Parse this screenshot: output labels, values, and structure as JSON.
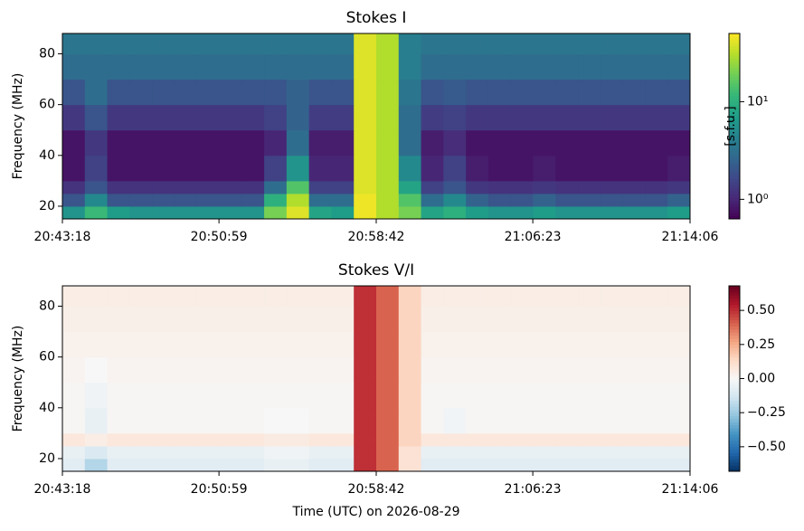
{
  "chart_data": [
    {
      "type": "heatmap",
      "title": "Stokes I",
      "ylabel": "Frequency (MHz)",
      "x": [
        0,
        66,
        132,
        198,
        264,
        330,
        396,
        462,
        528,
        594,
        660,
        726,
        792,
        858,
        924,
        990,
        1056,
        1122,
        1188,
        1254,
        1320,
        1386,
        1452,
        1518,
        1584,
        1650,
        1716,
        1782
      ],
      "y": [
        15,
        20,
        25,
        30,
        40,
        50,
        60,
        70,
        80
      ],
      "z": [
        [
          6,
          12,
          7,
          6,
          6,
          6,
          6,
          6,
          6,
          20,
          40,
          8,
          7,
          45,
          30,
          20,
          8,
          10,
          7,
          6,
          6,
          7,
          6,
          6,
          6,
          6,
          6,
          7
        ],
        [
          2,
          5,
          2,
          2,
          2,
          2,
          2,
          2,
          2,
          10,
          30,
          3,
          3,
          45,
          30,
          15,
          3,
          5,
          2.5,
          2,
          2,
          2.5,
          2,
          2,
          2,
          2,
          2,
          2.5
        ],
        [
          1.2,
          2,
          1.2,
          1.2,
          1.2,
          1.2,
          1.2,
          1.2,
          1.2,
          3,
          15,
          1.5,
          1.5,
          40,
          30,
          8,
          1.5,
          2,
          1.3,
          1.2,
          1.2,
          1.3,
          1.2,
          1.2,
          1.2,
          1.2,
          1.2,
          1.3
        ],
        [
          0.8,
          1.5,
          0.8,
          0.8,
          0.8,
          0.8,
          0.8,
          0.8,
          0.8,
          1.5,
          6,
          1,
          1,
          40,
          30,
          5,
          1,
          1.5,
          0.9,
          0.8,
          0.8,
          0.9,
          0.8,
          0.8,
          0.8,
          0.8,
          0.8,
          0.9
        ],
        [
          0.8,
          1.3,
          0.8,
          0.8,
          0.8,
          0.8,
          0.8,
          0.8,
          0.8,
          1,
          3,
          0.9,
          0.9,
          40,
          30,
          3,
          0.9,
          1.1,
          0.8,
          0.8,
          0.8,
          0.8,
          0.8,
          0.8,
          0.8,
          0.8,
          0.8,
          0.8
        ],
        [
          1.3,
          2,
          1.3,
          1.3,
          1.3,
          1.3,
          1.3,
          1.3,
          1.3,
          1.5,
          2.5,
          1.4,
          1.4,
          40,
          30,
          3,
          1.4,
          1.5,
          1.3,
          1.3,
          1.3,
          1.3,
          1.3,
          1.3,
          1.3,
          1.3,
          1.3,
          1.3
        ],
        [
          2,
          3,
          2,
          2,
          2,
          2,
          2,
          2,
          2,
          2,
          2.5,
          2,
          2,
          40,
          30,
          3.5,
          2,
          2.2,
          2,
          2,
          2,
          2,
          2,
          2,
          2,
          2,
          2,
          2
        ],
        [
          3,
          3,
          3,
          3,
          3,
          3,
          3,
          3,
          3,
          3,
          3,
          3,
          3,
          40,
          30,
          4,
          3,
          3,
          3,
          3,
          3,
          3,
          3,
          3,
          3,
          3,
          3,
          3
        ],
        [
          3.5,
          3.5,
          3.5,
          3.5,
          3.5,
          3.5,
          3.5,
          3.5,
          3.5,
          3.5,
          3.5,
          3.5,
          3.5,
          40,
          30,
          4,
          3.5,
          3.5,
          3.5,
          3.5,
          3.5,
          3.5,
          3.5,
          3.5,
          3.5,
          3.5,
          3.5,
          3.5
        ]
      ],
      "xlim": [
        0,
        1848
      ],
      "ylim": [
        15,
        88
      ],
      "xticks": [
        {
          "value": 0,
          "label": "20:43:18"
        },
        {
          "value": 461,
          "label": "20:50:59"
        },
        {
          "value": 924,
          "label": "20:58:42"
        },
        {
          "value": 1385,
          "label": "21:06:23"
        },
        {
          "value": 1848,
          "label": "21:14:06"
        }
      ],
      "yticks": [
        20,
        40,
        60,
        80
      ],
      "colorbar": {
        "label": "[s.f.u.]",
        "cmap": "viridis",
        "scale": "log",
        "clim": [
          0.63,
          50
        ],
        "ticks": [
          {
            "value": 1,
            "label": "10⁰"
          },
          {
            "value": 10,
            "label": "10¹"
          }
        ]
      }
    },
    {
      "type": "heatmap",
      "title": "Stokes V/I",
      "ylabel": "Frequency (MHz)",
      "xlabel": "Time (UTC) on 2026-08-29",
      "x": [
        0,
        66,
        132,
        198,
        264,
        330,
        396,
        462,
        528,
        594,
        660,
        726,
        792,
        858,
        924,
        990,
        1056,
        1122,
        1188,
        1254,
        1320,
        1386,
        1452,
        1518,
        1584,
        1650,
        1716,
        1782
      ],
      "y": [
        15,
        20,
        25,
        30,
        40,
        50,
        60,
        70,
        80
      ],
      "z": [
        [
          -0.08,
          -0.2,
          -0.08,
          -0.08,
          -0.08,
          -0.08,
          -0.08,
          -0.08,
          -0.08,
          -0.05,
          -0.05,
          -0.08,
          -0.08,
          0.5,
          0.4,
          0.1,
          -0.08,
          -0.08,
          -0.08,
          -0.08,
          -0.08,
          -0.08,
          -0.08,
          -0.08,
          -0.08,
          -0.08,
          -0.08,
          -0.08
        ],
        [
          -0.05,
          -0.1,
          -0.05,
          -0.05,
          -0.05,
          -0.05,
          -0.05,
          -0.05,
          -0.05,
          -0.03,
          -0.03,
          -0.05,
          -0.05,
          0.5,
          0.4,
          0.1,
          -0.05,
          -0.05,
          -0.05,
          -0.05,
          -0.05,
          -0.05,
          -0.05,
          -0.05,
          -0.05,
          -0.05,
          -0.05,
          -0.05
        ],
        [
          0.08,
          0.05,
          0.08,
          0.08,
          0.08,
          0.08,
          0.08,
          0.08,
          0.08,
          0.06,
          0.06,
          0.08,
          0.08,
          0.5,
          0.4,
          0.15,
          0.08,
          0.08,
          0.08,
          0.08,
          0.08,
          0.08,
          0.08,
          0.08,
          0.08,
          0.08,
          0.08,
          0.08
        ],
        [
          0.01,
          -0.05,
          0.01,
          0.01,
          0.01,
          0.01,
          0.01,
          0.01,
          0.01,
          0,
          0,
          0.01,
          0.01,
          0.5,
          0.4,
          0.15,
          0.01,
          -0.02,
          0.01,
          0.01,
          0.01,
          0.01,
          0.01,
          0.01,
          0.01,
          0.01,
          0.01,
          0.01
        ],
        [
          0.01,
          -0.03,
          0.01,
          0.01,
          0.01,
          0.01,
          0.01,
          0.01,
          0.01,
          0.01,
          0.01,
          0.01,
          0.01,
          0.5,
          0.4,
          0.15,
          0.01,
          0.01,
          0.01,
          0.01,
          0.01,
          0.01,
          0.01,
          0.01,
          0.01,
          0.01,
          0.01,
          0.01
        ],
        [
          0.02,
          0,
          0.02,
          0.02,
          0.02,
          0.02,
          0.02,
          0.02,
          0.02,
          0.02,
          0.02,
          0.02,
          0.02,
          0.5,
          0.4,
          0.15,
          0.02,
          0.02,
          0.02,
          0.02,
          0.02,
          0.02,
          0.02,
          0.02,
          0.02,
          0.02,
          0.02,
          0.02
        ],
        [
          0.03,
          0.03,
          0.03,
          0.03,
          0.03,
          0.03,
          0.03,
          0.03,
          0.03,
          0.03,
          0.03,
          0.03,
          0.03,
          0.5,
          0.4,
          0.15,
          0.03,
          0.03,
          0.03,
          0.03,
          0.03,
          0.03,
          0.03,
          0.03,
          0.03,
          0.03,
          0.03,
          0.03
        ],
        [
          0.04,
          0.04,
          0.04,
          0.04,
          0.04,
          0.04,
          0.04,
          0.04,
          0.04,
          0.04,
          0.04,
          0.04,
          0.04,
          0.5,
          0.4,
          0.15,
          0.04,
          0.04,
          0.04,
          0.04,
          0.04,
          0.04,
          0.04,
          0.04,
          0.04,
          0.04,
          0.04,
          0.04
        ],
        [
          0.05,
          0.05,
          0.05,
          0.05,
          0.05,
          0.05,
          0.05,
          0.05,
          0.05,
          0.05,
          0.05,
          0.05,
          0.05,
          0.5,
          0.4,
          0.15,
          0.05,
          0.05,
          0.05,
          0.05,
          0.05,
          0.05,
          0.05,
          0.05,
          0.05,
          0.05,
          0.05,
          0.05
        ]
      ],
      "xlim": [
        0,
        1848
      ],
      "ylim": [
        15,
        88
      ],
      "xticks": [
        {
          "value": 0,
          "label": "20:43:18"
        },
        {
          "value": 461,
          "label": "20:50:59"
        },
        {
          "value": 924,
          "label": "20:58:42"
        },
        {
          "value": 1385,
          "label": "21:06:23"
        },
        {
          "value": 1848,
          "label": "21:14:06"
        }
      ],
      "yticks": [
        20,
        40,
        60,
        80
      ],
      "colorbar": {
        "cmap": "RdBu_r",
        "scale": "linear",
        "clim": [
          -0.68,
          0.68
        ],
        "ticks": [
          {
            "value": 0.5,
            "label": "0.50"
          },
          {
            "value": 0.25,
            "label": "0.25"
          },
          {
            "value": 0,
            "label": "0.00"
          },
          {
            "value": -0.25,
            "label": "−0.25"
          },
          {
            "value": -0.5,
            "label": "−0.50"
          }
        ]
      }
    }
  ]
}
